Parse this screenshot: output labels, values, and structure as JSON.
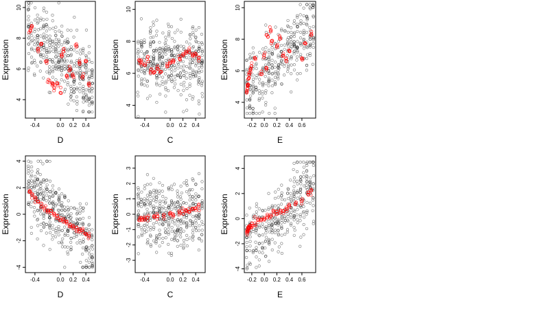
{
  "colors": {
    "raw_points": "#000000",
    "fitted_points": "#ff0000",
    "frame": "#000000",
    "background": "#ffffff"
  },
  "chart_data": [
    {
      "type": "scatter",
      "xlabel": "D",
      "ylabel": "Expression",
      "xlim": [
        -0.55,
        0.55
      ],
      "ylim": [
        2.8,
        10.4
      ],
      "xticks": [
        -0.4,
        0.0,
        0.2,
        0.4
      ],
      "xtick_labels": [
        "-0.4",
        "0.0",
        "0.2",
        "0.4"
      ],
      "yticks": [
        4,
        6,
        8,
        10
      ],
      "ytick_labels": [
        "4",
        "6",
        "8",
        "10"
      ],
      "grid": false,
      "marker": "open-circle",
      "series": [
        {
          "role": "observed",
          "color": "#000000",
          "x_range": [
            -0.5,
            0.5
          ],
          "y_range": [
            3.2,
            10.3
          ],
          "approx_trend": "decreasing",
          "n_approx": 400
        },
        {
          "role": "fitted",
          "color": "#ff0000",
          "x": [
            -0.48,
            -0.45,
            -0.35,
            -0.3,
            -0.22,
            -0.18,
            -0.12,
            -0.1,
            -0.05,
            0.0,
            0.02,
            0.05,
            0.1,
            0.15,
            0.2,
            0.25,
            0.3,
            0.35,
            0.4,
            0.45
          ],
          "y": [
            8.5,
            8.8,
            7.2,
            7.6,
            6.5,
            5.2,
            5.0,
            4.8,
            5.0,
            4.5,
            6.8,
            7.2,
            5.5,
            6.0,
            5.6,
            7.5,
            6.3,
            5.5,
            6.5,
            5.0
          ]
        }
      ]
    },
    {
      "type": "scatter",
      "xlabel": "C",
      "ylabel": "Expression",
      "xlim": [
        -0.55,
        0.55
      ],
      "ylim": [
        3.2,
        10.5
      ],
      "xticks": [
        -0.4,
        0.0,
        0.2,
        0.4
      ],
      "xtick_labels": [
        "-0.4",
        "0.0",
        "0.2",
        "0.4"
      ],
      "yticks": [
        4,
        6,
        8,
        10
      ],
      "ytick_labels": [
        "4",
        "6",
        "8",
        "10"
      ],
      "grid": false,
      "marker": "open-circle",
      "series": [
        {
          "role": "observed",
          "color": "#000000",
          "x_range": [
            -0.5,
            0.5
          ],
          "y_range": [
            3.3,
            10.3
          ],
          "approx_trend": "flat",
          "n_approx": 400
        },
        {
          "role": "fitted",
          "color": "#ff0000",
          "x": [
            -0.48,
            -0.45,
            -0.4,
            -0.35,
            -0.3,
            -0.25,
            -0.2,
            -0.15,
            -0.05,
            0.0,
            0.05,
            0.15,
            0.2,
            0.25,
            0.3,
            0.35,
            0.4,
            0.45
          ],
          "y": [
            6.8,
            6.6,
            6.5,
            6.9,
            6.2,
            6.1,
            6.3,
            6.0,
            6.5,
            6.7,
            6.8,
            7.0,
            7.2,
            7.3,
            7.4,
            7.1,
            7.2,
            7.0
          ]
        }
      ]
    },
    {
      "type": "scatter",
      "xlabel": "E",
      "ylabel": "Expression",
      "xlim": [
        -0.32,
        0.82
      ],
      "ylim": [
        3.0,
        10.4
      ],
      "xticks": [
        -0.2,
        0.0,
        0.2,
        0.4,
        0.6
      ],
      "xtick_labels": [
        "-0.2",
        "0.0",
        "0.2",
        "0.4",
        "0.6"
      ],
      "yticks": [
        4,
        6,
        8,
        10
      ],
      "ytick_labels": [
        "4",
        "6",
        "8",
        "10"
      ],
      "grid": false,
      "marker": "open-circle",
      "series": [
        {
          "role": "observed",
          "color": "#000000",
          "x_range": [
            -0.28,
            0.78
          ],
          "y_range": [
            3.3,
            10.2
          ],
          "approx_trend": "increasing",
          "n_approx": 350
        },
        {
          "role": "fitted",
          "color": "#ff0000",
          "x": [
            -0.28,
            -0.27,
            -0.26,
            -0.25,
            -0.24,
            -0.22,
            -0.2,
            -0.15,
            -0.05,
            0.0,
            0.03,
            0.05,
            0.1,
            0.12,
            0.2,
            0.25,
            0.3,
            0.35,
            0.4,
            0.6,
            0.65,
            0.75
          ],
          "y": [
            4.6,
            4.9,
            5.2,
            5.5,
            5.8,
            6.1,
            6.3,
            6.8,
            5.8,
            7.0,
            6.2,
            8.3,
            8.6,
            7.8,
            7.5,
            8.1,
            7.0,
            6.8,
            7.2,
            6.8,
            7.8,
            8.3
          ]
        }
      ]
    },
    {
      "type": "scatter",
      "xlabel": "D",
      "ylabel": "Expression",
      "xlim": [
        -0.55,
        0.55
      ],
      "ylim": [
        -4.4,
        4.4
      ],
      "xticks": [
        -0.4,
        0.0,
        0.2,
        0.4
      ],
      "xtick_labels": [
        "-0.4",
        "0.0",
        "0.2",
        "0.4"
      ],
      "yticks": [
        -4,
        -2,
        0,
        2,
        4
      ],
      "ytick_labels": [
        "-4",
        "-2",
        "0",
        "2",
        "4"
      ],
      "grid": false,
      "marker": "open-circle",
      "series": [
        {
          "role": "observed",
          "color": "#000000",
          "x_range": [
            -0.5,
            0.5
          ],
          "y_range": [
            -4.0,
            4.0
          ],
          "approx_trend": "decreasing",
          "n_approx": 400
        },
        {
          "role": "fitted",
          "color": "#ff0000",
          "x": [
            -0.48,
            -0.45,
            -0.4,
            -0.35,
            -0.3,
            -0.25,
            -0.2,
            -0.15,
            -0.1,
            -0.05,
            0.0,
            0.05,
            0.1,
            0.15,
            0.2,
            0.25,
            0.3,
            0.35,
            0.4,
            0.45
          ],
          "y": [
            1.7,
            1.5,
            1.2,
            0.9,
            0.7,
            0.5,
            0.3,
            0.15,
            0.0,
            -0.2,
            -0.35,
            -0.5,
            -0.65,
            -0.8,
            -0.95,
            -1.05,
            -1.2,
            -1.3,
            -1.45,
            -1.6
          ]
        }
      ]
    },
    {
      "type": "scatter",
      "xlabel": "C",
      "ylabel": "Expression",
      "xlim": [
        -0.55,
        0.55
      ],
      "ylim": [
        -3.8,
        3.8
      ],
      "xticks": [
        -0.4,
        0.0,
        0.2,
        0.4
      ],
      "xtick_labels": [
        "-0.4",
        "0.0",
        "0.2",
        "0.4"
      ],
      "yticks": [
        -3,
        -2,
        -1,
        0,
        1,
        2,
        3
      ],
      "ytick_labels": [
        "-3",
        "-2",
        "-1",
        "0",
        "1",
        "2",
        "3"
      ],
      "grid": false,
      "marker": "open-circle",
      "series": [
        {
          "role": "observed",
          "color": "#000000",
          "x_range": [
            -0.5,
            0.5
          ],
          "y_range": [
            -3.5,
            3.5
          ],
          "approx_trend": "flat",
          "n_approx": 400
        },
        {
          "role": "fitted",
          "color": "#ff0000",
          "x": [
            -0.48,
            -0.45,
            -0.4,
            -0.35,
            -0.25,
            -0.2,
            -0.1,
            0.0,
            0.05,
            0.15,
            0.2,
            0.25,
            0.3,
            0.35,
            0.4,
            0.45
          ],
          "y": [
            -0.35,
            -0.3,
            -0.25,
            -0.2,
            -0.15,
            -0.1,
            -0.05,
            0.0,
            0.05,
            0.1,
            0.15,
            0.2,
            0.25,
            0.3,
            0.35,
            0.4
          ]
        }
      ]
    },
    {
      "type": "scatter",
      "xlabel": "E",
      "ylabel": "Expression",
      "xlim": [
        -0.32,
        0.82
      ],
      "ylim": [
        -4.3,
        5.0
      ],
      "xticks": [
        -0.2,
        0.0,
        0.2,
        0.4,
        0.6
      ],
      "xtick_labels": [
        "-0.2",
        "0.0",
        "0.2",
        "0.4",
        "0.6"
      ],
      "yticks": [
        -4,
        -2,
        0,
        2,
        4
      ],
      "ytick_labels": [
        "-4",
        "-2",
        "0",
        "2",
        "4"
      ],
      "grid": false,
      "marker": "open-circle",
      "series": [
        {
          "role": "observed",
          "color": "#000000",
          "x_range": [
            -0.28,
            0.78
          ],
          "y_range": [
            -4.0,
            4.5
          ],
          "approx_trend": "increasing",
          "n_approx": 350
        },
        {
          "role": "fitted",
          "color": "#ff0000",
          "x": [
            -0.28,
            -0.27,
            -0.26,
            -0.25,
            -0.24,
            -0.22,
            -0.2,
            -0.15,
            -0.1,
            -0.05,
            0.0,
            0.05,
            0.1,
            0.15,
            0.2,
            0.25,
            0.3,
            0.35,
            0.4,
            0.5,
            0.6,
            0.7,
            0.75
          ],
          "y": [
            -1.1,
            -1.0,
            -0.9,
            -0.8,
            -0.7,
            -0.6,
            -0.5,
            -0.35,
            -0.1,
            -0.05,
            0.0,
            0.2,
            0.3,
            0.4,
            0.5,
            0.6,
            0.7,
            0.85,
            1.0,
            1.2,
            1.5,
            2.0,
            2.2
          ]
        }
      ]
    }
  ]
}
